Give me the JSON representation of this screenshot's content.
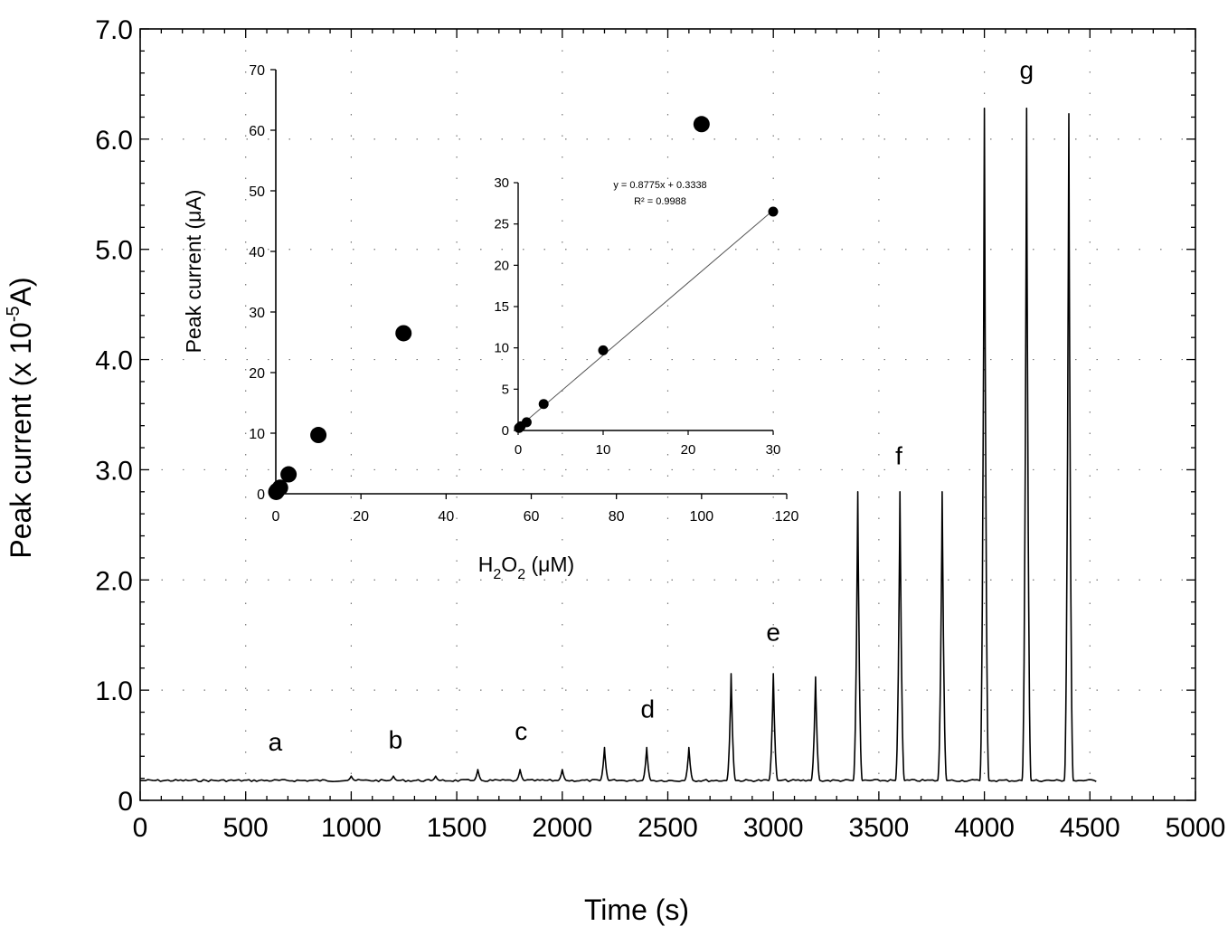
{
  "colors": {
    "line": "#000000",
    "grid": "#777777",
    "background": "#ffffff"
  },
  "chart_data": [
    {
      "id": "main",
      "type": "line",
      "title": "",
      "xlabel": "Time (s)",
      "ylabel": {
        "text": "Peak current (x 10",
        "sup": "-5",
        "tail": "A)"
      },
      "xlim": [
        0,
        5000
      ],
      "ylim": [
        0,
        7.0
      ],
      "x_ticks": [
        0,
        500,
        1000,
        1500,
        2000,
        2500,
        3000,
        3500,
        4000,
        4500,
        5000
      ],
      "x_tick_labels": [
        "0",
        "500",
        "1000",
        "1500",
        "2000",
        "2500",
        "3000",
        "3500",
        "4000",
        "4500",
        "5000"
      ],
      "y_ticks": [
        0,
        1.0,
        2.0,
        3.0,
        4.0,
        5.0,
        6.0,
        7.0
      ],
      "y_tick_labels": [
        "0",
        "1.0",
        "2.0",
        "3.0",
        "4.0",
        "5.0",
        "6.0",
        "7.0"
      ],
      "grid": "dotted",
      "baseline": 0.18,
      "trace_start": 0,
      "trace_end": 4540,
      "peaks": [
        {
          "x": 1000,
          "y": 0.22
        },
        {
          "x": 1200,
          "y": 0.22
        },
        {
          "x": 1400,
          "y": 0.22
        },
        {
          "x": 1600,
          "y": 0.28
        },
        {
          "x": 1800,
          "y": 0.28
        },
        {
          "x": 2000,
          "y": 0.28
        },
        {
          "x": 2200,
          "y": 0.48
        },
        {
          "x": 2400,
          "y": 0.48
        },
        {
          "x": 2600,
          "y": 0.48
        },
        {
          "x": 2800,
          "y": 1.15
        },
        {
          "x": 3000,
          "y": 1.15
        },
        {
          "x": 3200,
          "y": 1.12
        },
        {
          "x": 3400,
          "y": 2.8
        },
        {
          "x": 3600,
          "y": 2.8
        },
        {
          "x": 3800,
          "y": 2.8
        },
        {
          "x": 4000,
          "y": 6.28
        },
        {
          "x": 4200,
          "y": 6.28
        },
        {
          "x": 4400,
          "y": 6.23
        }
      ],
      "annotations": [
        {
          "text": "a",
          "x": 640,
          "y": 0.45
        },
        {
          "text": "b",
          "x": 1210,
          "y": 0.47
        },
        {
          "text": "c",
          "x": 1805,
          "y": 0.55
        },
        {
          "text": "d",
          "x": 2405,
          "y": 0.75
        },
        {
          "text": "e",
          "x": 3000,
          "y": 1.45
        },
        {
          "text": "f",
          "x": 3595,
          "y": 3.05
        },
        {
          "text": "g",
          "x": 4200,
          "y": 6.55
        }
      ]
    },
    {
      "id": "inset",
      "type": "scatter",
      "xlabel": {
        "pre": "H",
        "sub1": "2",
        "mid": "O",
        "sub2": "2",
        "post": " (μM)"
      },
      "ylabel": "Peak current (μA)",
      "xlim": [
        0,
        120
      ],
      "ylim": [
        0,
        70
      ],
      "x_ticks": [
        0,
        20,
        40,
        60,
        80,
        100,
        120
      ],
      "x_tick_labels": [
        "0",
        "20",
        "40",
        "60",
        "80",
        "100",
        "120"
      ],
      "y_ticks": [
        0,
        10,
        20,
        30,
        40,
        50,
        60,
        70
      ],
      "y_tick_labels": [
        "0",
        "10",
        "20",
        "30",
        "40",
        "50",
        "60",
        "70"
      ],
      "points": [
        {
          "x": 0.1,
          "y": 0.3
        },
        {
          "x": 0.3,
          "y": 0.5
        },
        {
          "x": 1,
          "y": 1.0
        },
        {
          "x": 3,
          "y": 3.2
        },
        {
          "x": 10,
          "y": 9.7
        },
        {
          "x": 30,
          "y": 26.5
        },
        {
          "x": 100,
          "y": 61
        }
      ]
    },
    {
      "id": "sub-inset",
      "type": "scatter",
      "xlim": [
        0,
        30
      ],
      "ylim": [
        0,
        30
      ],
      "x_ticks": [
        0,
        10,
        20,
        30
      ],
      "x_tick_labels": [
        "0",
        "10",
        "20",
        "30"
      ],
      "y_ticks": [
        0,
        5,
        10,
        15,
        20,
        25,
        30
      ],
      "y_tick_labels": [
        "0",
        "5",
        "10",
        "15",
        "20",
        "25",
        "30"
      ],
      "points": [
        {
          "x": 0.1,
          "y": 0.3
        },
        {
          "x": 0.3,
          "y": 0.5
        },
        {
          "x": 1,
          "y": 1.0
        },
        {
          "x": 3,
          "y": 3.2
        },
        {
          "x": 10,
          "y": 9.7
        },
        {
          "x": 30,
          "y": 26.5
        }
      ],
      "fit": {
        "slope": 0.8775,
        "intercept": 0.3338,
        "x_range": [
          0,
          30
        ]
      },
      "equation": "y = 0.8775x + 0.3338",
      "r_squared": "R² = 0.9988"
    }
  ]
}
